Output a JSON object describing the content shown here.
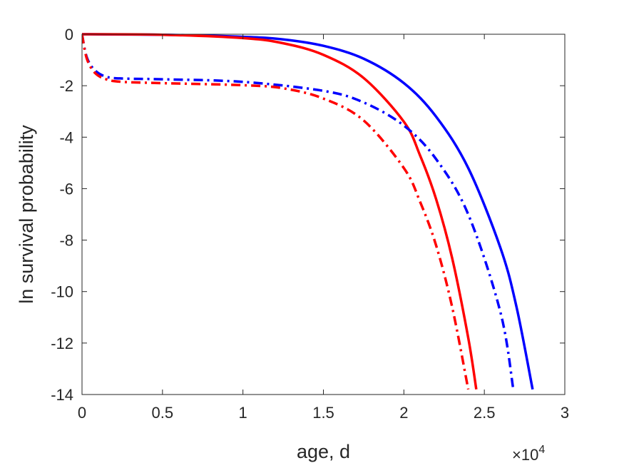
{
  "chart_data": {
    "type": "line",
    "title": "",
    "xlabel": "age, d",
    "ylabel": "ln survival probability",
    "x_exponent_label": {
      "base": "×10",
      "exponent": "4"
    },
    "xlim": [
      0,
      3
    ],
    "ylim": [
      -14,
      0
    ],
    "xticks": [
      0,
      0.5,
      1,
      1.5,
      2,
      2.5,
      3
    ],
    "xtick_labels": [
      "0",
      "0.5",
      "1",
      "1.5",
      "2",
      "2.5",
      "3"
    ],
    "yticks": [
      0,
      -2,
      -4,
      -6,
      -8,
      -10,
      -12,
      -14
    ],
    "ytick_labels": [
      "0",
      "-2",
      "-4",
      "-6",
      "-8",
      "-10",
      "-12",
      "-14"
    ],
    "grid": false,
    "legend": "none",
    "series": [
      {
        "color": "#0000ff",
        "style": "solid",
        "x": [
          0,
          0.5,
          1.0,
          1.25,
          1.5,
          1.75,
          2.0,
          2.2,
          2.4,
          2.6,
          2.7,
          2.8
        ],
        "y": [
          0,
          -0.02,
          -0.1,
          -0.2,
          -0.45,
          -0.95,
          -1.9,
          -3.2,
          -5.2,
          -8.3,
          -10.6,
          -13.8
        ]
      },
      {
        "color": "#ff0000",
        "style": "solid",
        "x": [
          0,
          0.5,
          1.0,
          1.25,
          1.5,
          1.75,
          2.0,
          2.1,
          2.2,
          2.3,
          2.4,
          2.45
        ],
        "y": [
          0,
          -0.02,
          -0.15,
          -0.35,
          -0.8,
          -1.7,
          -3.4,
          -4.7,
          -6.4,
          -8.7,
          -11.8,
          -13.8
        ]
      },
      {
        "color": "#0000ff",
        "style": "dashdot",
        "x": [
          0,
          0.03,
          0.08,
          0.15,
          0.25,
          0.5,
          1.0,
          1.5,
          1.75,
          2.0,
          2.2,
          2.4,
          2.6,
          2.68
        ],
        "y": [
          0,
          -0.9,
          -1.4,
          -1.65,
          -1.72,
          -1.75,
          -1.85,
          -2.2,
          -2.65,
          -3.55,
          -4.85,
          -7.0,
          -10.8,
          -13.8
        ]
      },
      {
        "color": "#ff0000",
        "style": "dashdot",
        "x": [
          0,
          0.03,
          0.08,
          0.15,
          0.25,
          0.5,
          1.0,
          1.25,
          1.5,
          1.75,
          2.0,
          2.1,
          2.2,
          2.3,
          2.4
        ],
        "y": [
          0,
          -0.95,
          -1.5,
          -1.75,
          -1.85,
          -1.9,
          -1.98,
          -2.1,
          -2.5,
          -3.35,
          -5.2,
          -6.5,
          -8.2,
          -10.6,
          -13.8
        ]
      }
    ]
  }
}
